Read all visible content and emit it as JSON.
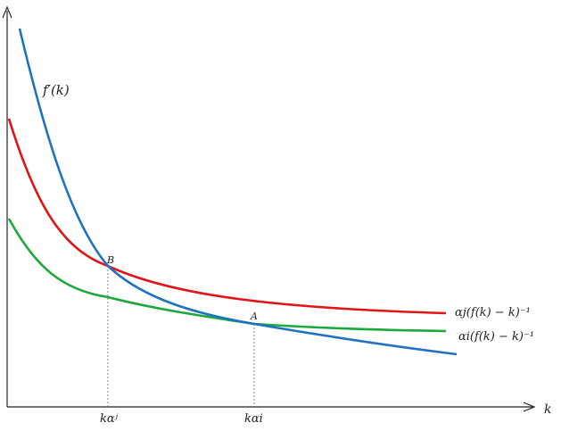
{
  "chart_data": {
    "type": "line",
    "title": "",
    "xlabel": "k",
    "ylabel": "",
    "curves": [
      {
        "name": "f'(k)",
        "color": "#1f72c0"
      },
      {
        "name": "αj(f(k) − k)⁻¹",
        "color": "#e01414"
      },
      {
        "name": "αi(f(k) − k)⁻¹",
        "color": "#1aaa3c"
      }
    ],
    "points": [
      {
        "label": "B",
        "x_label": "kαʲ"
      },
      {
        "label": "A",
        "x_label": "kαi"
      }
    ]
  },
  "labels": {
    "f_prime": "f′(k)",
    "alpha_j": "αj(f(k) − k)⁻¹",
    "alpha_i": "αi(f(k) − k)⁻¹",
    "point_b": "B",
    "point_a": "A",
    "tick_b": "kαʲ",
    "tick_a": "kαi",
    "x_axis": "k"
  },
  "colors": {
    "blue": "#1f72c0",
    "red": "#e01414",
    "green": "#1aaa3c",
    "axis": "#222222"
  }
}
